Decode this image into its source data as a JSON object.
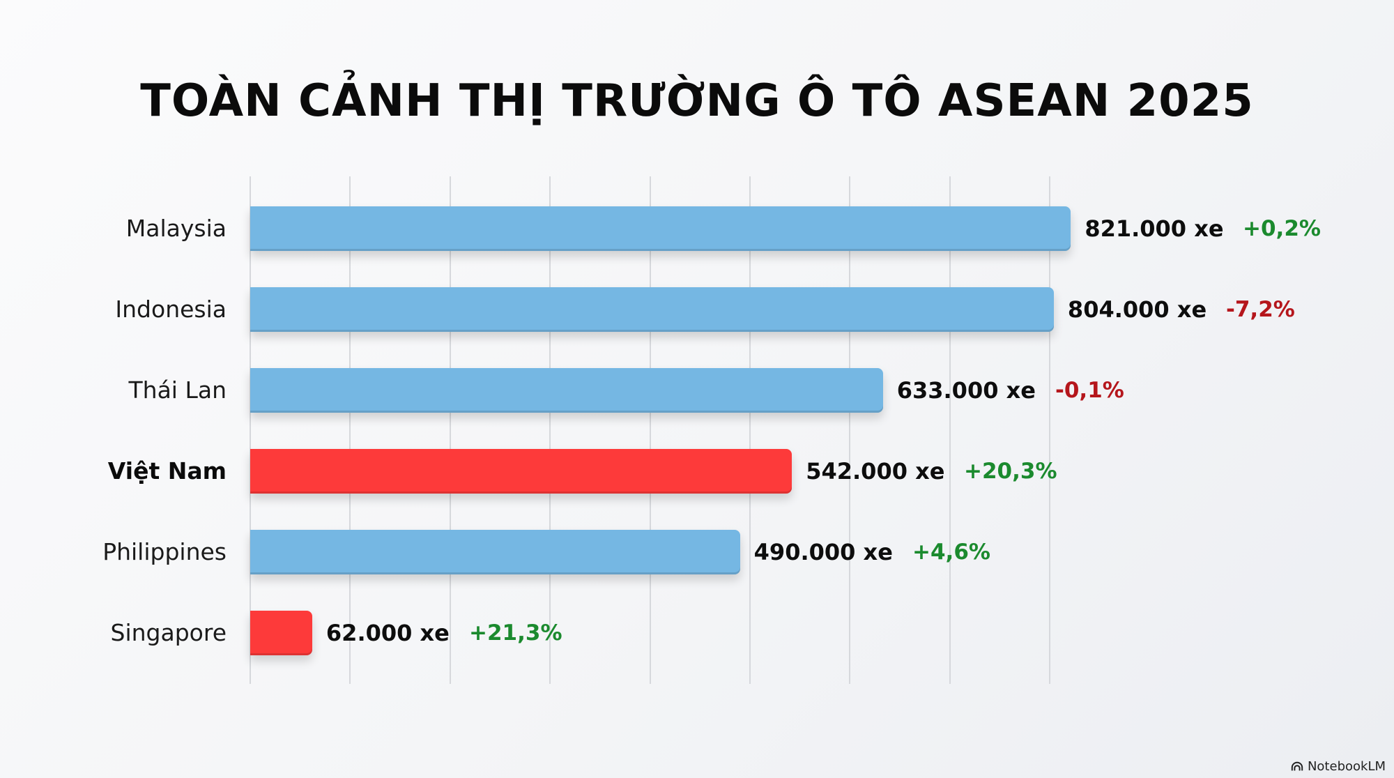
{
  "title": "TOÀN CẢNH THỊ TRƯỜNG Ô TÔ ASEAN 2025",
  "watermark": {
    "label": "NotebookLM",
    "icon": "notebooklm-logo-icon"
  },
  "colors": {
    "default_bar": "#75b7e3",
    "highlight_bar": "#fd3a3a",
    "positive": "#1b8a2e",
    "negative": "#b5161c",
    "grid": "#d6d8dc"
  },
  "rows": [
    {
      "country": "Malaysia",
      "value_label": "821.000 xe",
      "change_label": "+0,2%",
      "highlight": false,
      "direction": "up"
    },
    {
      "country": "Indonesia",
      "value_label": "804.000 xe",
      "change_label": "-7,2%",
      "highlight": false,
      "direction": "down"
    },
    {
      "country": "Thái Lan",
      "value_label": "633.000 xe",
      "change_label": "-0,1%",
      "highlight": false,
      "direction": "down"
    },
    {
      "country": "Việt Nam",
      "value_label": "542.000 xe",
      "change_label": "+20,3%",
      "highlight": true,
      "direction": "up"
    },
    {
      "country": "Philippines",
      "value_label": "490.000 xe",
      "change_label": "+4,6%",
      "highlight": false,
      "direction": "up"
    },
    {
      "country": "Singapore",
      "value_label": "62.000 xe",
      "change_label": "+21,3%",
      "highlight": true,
      "direction": "up"
    }
  ],
  "chart_data": {
    "type": "bar",
    "orientation": "horizontal",
    "title": "TOÀN CẢNH THỊ TRƯỜNG Ô TÔ ASEAN 2025",
    "categories": [
      "Malaysia",
      "Indonesia",
      "Thái Lan",
      "Việt Nam",
      "Philippines",
      "Singapore"
    ],
    "values": [
      821000,
      804000,
      633000,
      542000,
      490000,
      62000
    ],
    "unit": "xe",
    "yoy_change_percent": [
      0.2,
      -7.2,
      -0.1,
      20.3,
      4.6,
      21.3
    ],
    "highlighted": [
      "Việt Nam",
      "Singapore"
    ],
    "xlabel": "",
    "ylabel": "",
    "xlim": [
      0,
      900000
    ],
    "grid": true,
    "legend": null
  }
}
